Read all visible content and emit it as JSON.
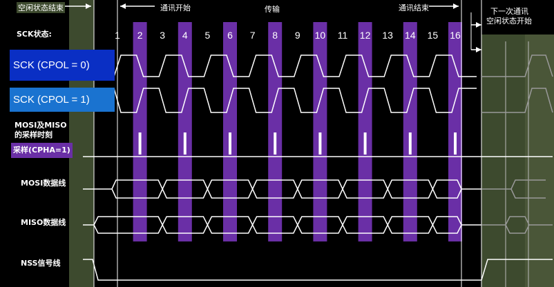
{
  "top": {
    "idle_end": "空闲状态结束",
    "comm_start": "通讯开始",
    "transfer": "传输",
    "comm_end": "通讯结束",
    "next_idle_line1": "下一次通讯",
    "next_idle_line2": "空闲状态开始"
  },
  "labels": {
    "sck_state": "SCK状态:",
    "cpol0": "SCK (CPOL = 0)",
    "cpol1": "SCK (CPOL = 1)",
    "sample_line1": "MOSI及MISO",
    "sample_line2": "的采样时刻",
    "cpha": "采样(CPHA=1)",
    "mosi": "MOSI数据线",
    "miso": "MISO数据线",
    "nss": "NSS信号线"
  },
  "edges": [
    "1",
    "2",
    "3",
    "4",
    "5",
    "6",
    "7",
    "8",
    "9",
    "10",
    "11",
    "12",
    "13",
    "14",
    "15",
    "16"
  ],
  "colors": {
    "idle_region": "#3d4a2e",
    "purple_bar": "#6a2fa6",
    "cpol0_box": "#0a2fc4",
    "cpol1_box": "#1a73d0",
    "cpha_box": "#6a2fa6"
  }
}
